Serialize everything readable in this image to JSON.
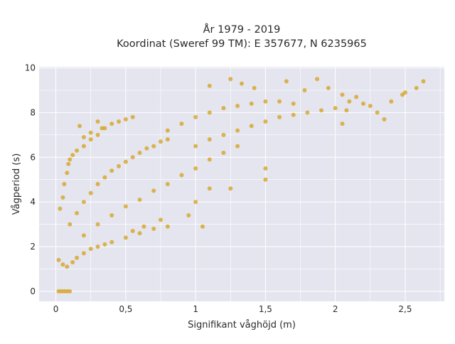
{
  "chart_data": {
    "type": "scatter",
    "title_line1": "År 1979 - 2019",
    "title_line2": "Koordinat (Sweref 99 TM): E 357677, N 6235965",
    "xlabel": "Signifikant våghöjd (m)",
    "ylabel": "Vågperiod (s)",
    "xlim": [
      -0.12,
      2.78
    ],
    "ylim": [
      -0.45,
      10.05
    ],
    "x_ticks": [
      0,
      0.5,
      1,
      1.5,
      2,
      2.5
    ],
    "x_tick_labels": [
      "0",
      "0,5",
      "1",
      "1,5",
      "2",
      "2,5"
    ],
    "y_ticks": [
      0,
      2,
      4,
      6,
      8,
      10
    ],
    "y_tick_labels": [
      "0",
      "2",
      "4",
      "6",
      "8",
      "10"
    ],
    "grid": true,
    "marker_color": "#D4A017",
    "plot_bg": "#E5E5F0",
    "series": [
      {
        "points": [
          [
            0.02,
            0
          ],
          [
            0.04,
            0
          ],
          [
            0.06,
            0
          ],
          [
            0.08,
            0
          ],
          [
            0.1,
            0
          ],
          [
            0.02,
            1.4
          ],
          [
            0.05,
            1.2
          ],
          [
            0.08,
            1.1
          ],
          [
            0.12,
            1.3
          ],
          [
            0.15,
            1.5
          ],
          [
            0.2,
            1.7
          ],
          [
            0.25,
            1.9
          ],
          [
            0.3,
            2.0
          ],
          [
            0.35,
            2.1
          ],
          [
            0.4,
            2.2
          ],
          [
            0.5,
            2.4
          ],
          [
            0.6,
            2.6
          ],
          [
            0.7,
            2.8
          ],
          [
            0.8,
            2.9
          ],
          [
            0.03,
            3.7
          ],
          [
            0.05,
            4.2
          ],
          [
            0.06,
            4.8
          ],
          [
            0.08,
            5.3
          ],
          [
            0.09,
            5.7
          ],
          [
            0.1,
            5.9
          ],
          [
            0.12,
            6.1
          ],
          [
            0.15,
            6.3
          ],
          [
            0.2,
            6.5
          ],
          [
            0.25,
            6.8
          ],
          [
            0.3,
            7.0
          ],
          [
            0.35,
            7.3
          ],
          [
            0.4,
            7.5
          ],
          [
            0.45,
            7.6
          ],
          [
            0.5,
            7.7
          ],
          [
            0.55,
            7.8
          ],
          [
            0.1,
            3.0
          ],
          [
            0.15,
            3.5
          ],
          [
            0.2,
            4.0
          ],
          [
            0.25,
            4.4
          ],
          [
            0.3,
            4.8
          ],
          [
            0.35,
            5.1
          ],
          [
            0.4,
            5.4
          ],
          [
            0.45,
            5.6
          ],
          [
            0.5,
            5.8
          ],
          [
            0.55,
            6.0
          ],
          [
            0.6,
            6.2
          ],
          [
            0.65,
            6.4
          ],
          [
            0.7,
            6.5
          ],
          [
            0.75,
            6.7
          ],
          [
            0.8,
            6.8
          ],
          [
            0.2,
            2.5
          ],
          [
            0.3,
            3.0
          ],
          [
            0.4,
            3.4
          ],
          [
            0.5,
            3.8
          ],
          [
            0.6,
            4.1
          ],
          [
            0.7,
            4.5
          ],
          [
            0.8,
            4.8
          ],
          [
            0.9,
            5.2
          ],
          [
            1.0,
            5.5
          ],
          [
            1.1,
            5.9
          ],
          [
            1.2,
            6.2
          ],
          [
            1.3,
            6.5
          ],
          [
            0.8,
            7.2
          ],
          [
            0.9,
            7.5
          ],
          [
            1.0,
            7.8
          ],
          [
            1.1,
            8.0
          ],
          [
            1.2,
            8.2
          ],
          [
            1.3,
            8.3
          ],
          [
            1.4,
            8.4
          ],
          [
            1.5,
            8.5
          ],
          [
            1.6,
            8.5
          ],
          [
            1.7,
            8.4
          ],
          [
            1.0,
            6.5
          ],
          [
            1.1,
            6.8
          ],
          [
            1.2,
            7.0
          ],
          [
            1.3,
            7.2
          ],
          [
            1.4,
            7.4
          ],
          [
            1.5,
            7.6
          ],
          [
            1.6,
            7.8
          ],
          [
            1.7,
            7.9
          ],
          [
            1.8,
            8.0
          ],
          [
            1.9,
            8.1
          ],
          [
            2.0,
            8.2
          ],
          [
            1.1,
            9.2
          ],
          [
            1.25,
            9.5
          ],
          [
            1.33,
            9.3
          ],
          [
            1.42,
            9.1
          ],
          [
            1.65,
            9.4
          ],
          [
            1.78,
            9.0
          ],
          [
            1.87,
            9.5
          ],
          [
            1.95,
            9.1
          ],
          [
            2.05,
            8.8
          ],
          [
            2.08,
            8.1
          ],
          [
            2.1,
            8.5
          ],
          [
            2.15,
            8.7
          ],
          [
            2.2,
            8.4
          ],
          [
            2.25,
            8.3
          ],
          [
            2.3,
            8.0
          ],
          [
            2.35,
            7.7
          ],
          [
            2.4,
            8.5
          ],
          [
            2.5,
            8.9
          ],
          [
            2.58,
            9.1
          ],
          [
            2.63,
            9.4
          ],
          [
            2.48,
            8.8
          ],
          [
            2.05,
            7.5
          ],
          [
            1.5,
            5.0
          ],
          [
            1.5,
            5.5
          ],
          [
            1.25,
            4.6
          ],
          [
            1.1,
            4.6
          ],
          [
            1.0,
            4.0
          ],
          [
            0.95,
            3.4
          ],
          [
            0.75,
            3.2
          ],
          [
            0.63,
            2.9
          ],
          [
            0.55,
            2.7
          ],
          [
            1.05,
            2.9
          ],
          [
            0.3,
            7.6
          ],
          [
            0.33,
            7.3
          ],
          [
            0.17,
            7.4
          ],
          [
            0.2,
            6.9
          ],
          [
            0.25,
            7.1
          ]
        ]
      }
    ]
  }
}
